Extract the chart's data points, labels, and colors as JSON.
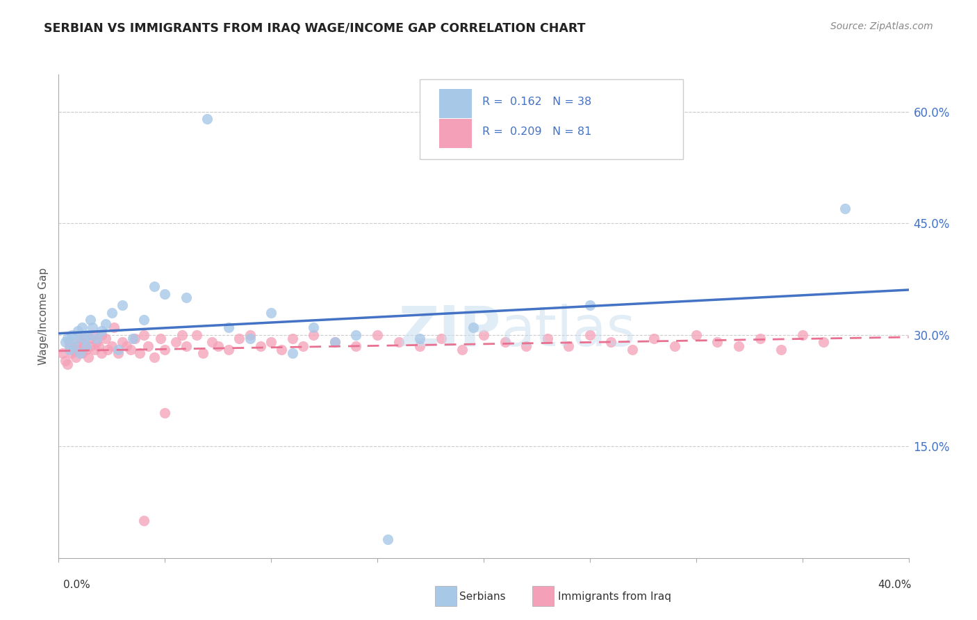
{
  "title": "SERBIAN VS IMMIGRANTS FROM IRAQ WAGE/INCOME GAP CORRELATION CHART",
  "source": "Source: ZipAtlas.com",
  "ylabel": "Wage/Income Gap",
  "y_ticks_labels": [
    "15.0%",
    "30.0%",
    "45.0%",
    "60.0%"
  ],
  "y_tick_vals": [
    0.15,
    0.3,
    0.45,
    0.6
  ],
  "x_range": [
    0.0,
    0.4
  ],
  "y_range": [
    0.0,
    0.65
  ],
  "color_serbian": "#a8c8e8",
  "color_iraq": "#f4a0b8",
  "color_line_serbian": "#4472c4",
  "color_line_iraq": "#e87090",
  "color_text_blue": "#4472c4",
  "color_title": "#222222",
  "color_source": "#888888",
  "color_grid": "#cccccc",
  "legend_text_r1": "R =  0.162   N = 38",
  "legend_text_r2": "R =  0.209   N = 81",
  "serbian_x": [
    0.003,
    0.004,
    0.005,
    0.006,
    0.007,
    0.008,
    0.009,
    0.01,
    0.011,
    0.012,
    0.013,
    0.014,
    0.015,
    0.016,
    0.018,
    0.02,
    0.022,
    0.025,
    0.028,
    0.03,
    0.035,
    0.04,
    0.045,
    0.05,
    0.06,
    0.07,
    0.08,
    0.09,
    0.1,
    0.11,
    0.12,
    0.13,
    0.14,
    0.155,
    0.17,
    0.195,
    0.25,
    0.37
  ],
  "serbian_y": [
    0.29,
    0.295,
    0.28,
    0.3,
    0.285,
    0.295,
    0.305,
    0.275,
    0.31,
    0.295,
    0.285,
    0.3,
    0.32,
    0.31,
    0.295,
    0.305,
    0.315,
    0.33,
    0.28,
    0.34,
    0.295,
    0.32,
    0.365,
    0.355,
    0.35,
    0.59,
    0.31,
    0.295,
    0.33,
    0.275,
    0.31,
    0.29,
    0.3,
    0.025,
    0.295,
    0.31,
    0.34,
    0.47
  ],
  "iraq_x": [
    0.002,
    0.003,
    0.004,
    0.005,
    0.005,
    0.006,
    0.007,
    0.008,
    0.009,
    0.01,
    0.01,
    0.011,
    0.012,
    0.012,
    0.013,
    0.014,
    0.015,
    0.015,
    0.016,
    0.017,
    0.018,
    0.019,
    0.02,
    0.02,
    0.022,
    0.023,
    0.025,
    0.026,
    0.028,
    0.03,
    0.032,
    0.034,
    0.036,
    0.038,
    0.04,
    0.042,
    0.045,
    0.048,
    0.05,
    0.055,
    0.058,
    0.06,
    0.065,
    0.068,
    0.072,
    0.075,
    0.08,
    0.085,
    0.09,
    0.095,
    0.1,
    0.105,
    0.11,
    0.115,
    0.12,
    0.13,
    0.14,
    0.15,
    0.16,
    0.17,
    0.18,
    0.19,
    0.2,
    0.21,
    0.22,
    0.23,
    0.24,
    0.25,
    0.26,
    0.27,
    0.28,
    0.29,
    0.3,
    0.31,
    0.32,
    0.33,
    0.34,
    0.35,
    0.36,
    0.05,
    0.04
  ],
  "iraq_y": [
    0.275,
    0.265,
    0.26,
    0.29,
    0.285,
    0.275,
    0.28,
    0.27,
    0.285,
    0.28,
    0.295,
    0.275,
    0.285,
    0.295,
    0.28,
    0.27,
    0.295,
    0.285,
    0.3,
    0.28,
    0.29,
    0.285,
    0.3,
    0.275,
    0.295,
    0.28,
    0.285,
    0.31,
    0.275,
    0.29,
    0.285,
    0.28,
    0.295,
    0.275,
    0.3,
    0.285,
    0.27,
    0.295,
    0.28,
    0.29,
    0.3,
    0.285,
    0.3,
    0.275,
    0.29,
    0.285,
    0.28,
    0.295,
    0.3,
    0.285,
    0.29,
    0.28,
    0.295,
    0.285,
    0.3,
    0.29,
    0.285,
    0.3,
    0.29,
    0.285,
    0.295,
    0.28,
    0.3,
    0.29,
    0.285,
    0.295,
    0.285,
    0.3,
    0.29,
    0.28,
    0.295,
    0.285,
    0.3,
    0.29,
    0.285,
    0.295,
    0.28,
    0.3,
    0.29,
    0.195,
    0.05
  ],
  "watermark_zip": "ZIP",
  "watermark_atlas": "atlas"
}
